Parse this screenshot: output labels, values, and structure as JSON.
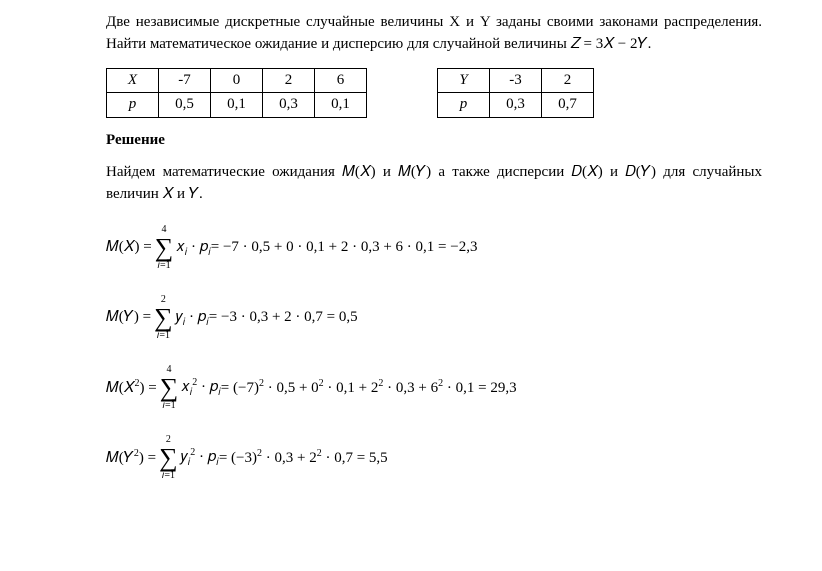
{
  "problem": {
    "text": "Две независимые дискретные случайные величины X и Y заданы своими законами распределения. Найти математическое ожидание и дисперсию для случайной величины  𝑍 = 3𝑋 − 2𝑌."
  },
  "tableX": {
    "var_label": "X",
    "prob_label": "p",
    "values": [
      "-7",
      "0",
      "2",
      "6"
    ],
    "probs": [
      "0,5",
      "0,1",
      "0,3",
      "0,1"
    ]
  },
  "tableY": {
    "var_label": "Y",
    "prob_label": "p",
    "values": [
      "-3",
      "2"
    ],
    "probs": [
      "0,3",
      "0,7"
    ]
  },
  "solution": {
    "label": "Решение",
    "text": "Найдем математические ожидания 𝑀(𝑋) и 𝑀(𝑌) а также дисперсии 𝐷(𝑋) и 𝐷(𝑌) для случайных величин 𝑋  и  𝑌."
  },
  "formulas": {
    "mx": {
      "lhs": "𝑀(𝑋) =",
      "sum_top": "4",
      "sum_bottom": "𝑖=1",
      "sum_expr": "𝑥",
      "sum_sub": "𝑖",
      "sum_dot": " · 𝑝",
      "sum_sub2": "𝑖",
      "rhs": " = −7 · 0,5 + 0 · 0,1 + 2 · 0,3 + 6 · 0,1 = −2,3"
    },
    "my": {
      "lhs": "𝑀(𝑌) =",
      "sum_top": "2",
      "sum_bottom": "𝑖=1",
      "sum_expr": "𝑦",
      "sum_sub": "𝑖",
      "sum_dot": " · 𝑝",
      "sum_sub2": "𝑖",
      "rhs": " = −3 · 0,3 + 2 · 0,7 = 0,5"
    },
    "mx2": {
      "lhs": "𝑀(𝑋",
      "lhs_sup": "2",
      "lhs_close": ") =",
      "sum_top": "4",
      "sum_bottom": "𝑖=1",
      "sum_expr": "𝑥",
      "sum_sub": "𝑖",
      "sum_sup": "2",
      "sum_dot": " · 𝑝",
      "sum_sub2": "𝑖",
      "rhs_a": " = (−7)",
      "rhs_sup1": "2",
      "rhs_b": " · 0,5 + 0",
      "rhs_sup2": "2",
      "rhs_c": " · 0,1 + 2",
      "rhs_sup3": "2",
      "rhs_d": " · 0,3 + 6",
      "rhs_sup4": "2",
      "rhs_e": " · 0,1 = 29,3"
    },
    "my2": {
      "lhs": "𝑀(𝑌",
      "lhs_sup": "2",
      "lhs_close": ") =",
      "sum_top": "2",
      "sum_bottom": "𝑖=1",
      "sum_expr": "𝑦",
      "sum_sub": "𝑖",
      "sum_sup": "2",
      "sum_dot": " · 𝑝",
      "sum_sub2": "𝑖",
      "rhs_a": " = (−3)",
      "rhs_sup1": "2",
      "rhs_b": " · 0,3 + 2",
      "rhs_sup2": "2",
      "rhs_c": " · 0,7 = 5,5"
    }
  }
}
